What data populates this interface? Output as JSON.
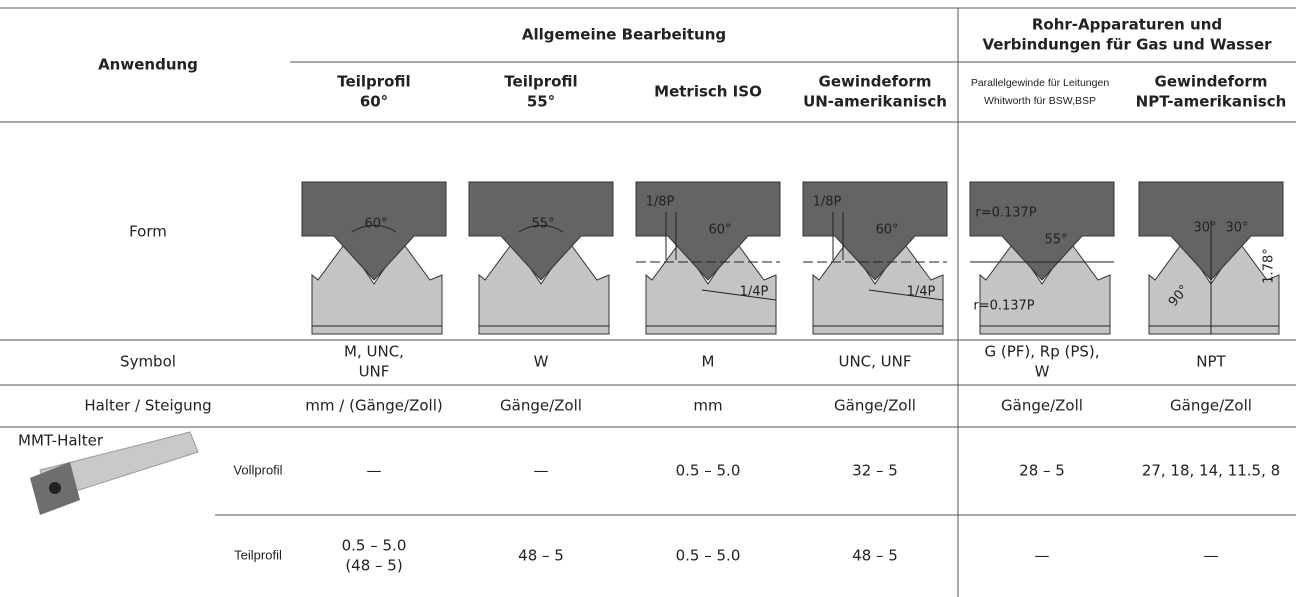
{
  "header": {
    "application": "Anwendung",
    "groups": [
      {
        "lines": [
          "Allgemeine Bearbeitung"
        ]
      },
      {
        "lines": [
          "Rohr-Apparaturen und",
          "Verbindungen für Gas und Wasser"
        ]
      }
    ],
    "columns": [
      {
        "lines": [
          "Teilprofil",
          "60°"
        ]
      },
      {
        "lines": [
          "Teilprofil",
          "55°"
        ]
      },
      {
        "lines": [
          "Metrisch ISO"
        ]
      },
      {
        "lines": [
          "Gewindeform",
          "UN-amerikanisch"
        ]
      },
      {
        "lines": [
          "Parallelgewinde für Leitungen",
          "Whitworth für BSW,BSP"
        ]
      },
      {
        "lines": [
          "Gewindeform",
          "NPT-amerikanisch"
        ]
      }
    ]
  },
  "form": {
    "label": "Form",
    "annotations": [
      [
        "60°"
      ],
      [
        "55°"
      ],
      [
        "1/8P",
        "60°",
        "1/4P"
      ],
      [
        "1/8P",
        "60°",
        "1/4P"
      ],
      [
        "r=0.137P",
        "55°",
        "r=0.137P"
      ],
      [
        "30°",
        "30°",
        "90°",
        "1.78°"
      ]
    ]
  },
  "symbol": {
    "label": "Symbol",
    "values": [
      [
        "M, UNC,",
        "UNF"
      ],
      [
        "W"
      ],
      [
        "M"
      ],
      [
        "UNC, UNF"
      ],
      [
        "G (PF), Rp (PS),",
        "W"
      ],
      [
        "NPT"
      ]
    ]
  },
  "pitch": {
    "label": "Halter / Steigung",
    "values": [
      [
        "mm / (Gänge/Zoll)"
      ],
      [
        "Gänge/Zoll"
      ],
      [
        "mm"
      ],
      [
        "Gänge/Zoll"
      ],
      [
        "Gänge/Zoll"
      ],
      [
        "Gänge/Zoll"
      ]
    ]
  },
  "holder": {
    "label": "MMT-Halter",
    "rows": [
      {
        "label": "Vollprofil",
        "values": [
          [
            "—"
          ],
          [
            "—"
          ],
          [
            "0.5 – 5.0"
          ],
          [
            "32 – 5"
          ],
          [
            "28 – 5"
          ],
          [
            "27, 18, 14, 11.5, 8"
          ]
        ]
      },
      {
        "label": "Teilprofil",
        "values": [
          [
            "0.5 – 5.0",
            "(48 – 5)"
          ],
          [
            "48 – 5"
          ],
          [
            "0.5 – 5.0"
          ],
          [
            "48 – 5"
          ],
          [
            "—"
          ],
          [
            "—"
          ]
        ]
      }
    ]
  }
}
